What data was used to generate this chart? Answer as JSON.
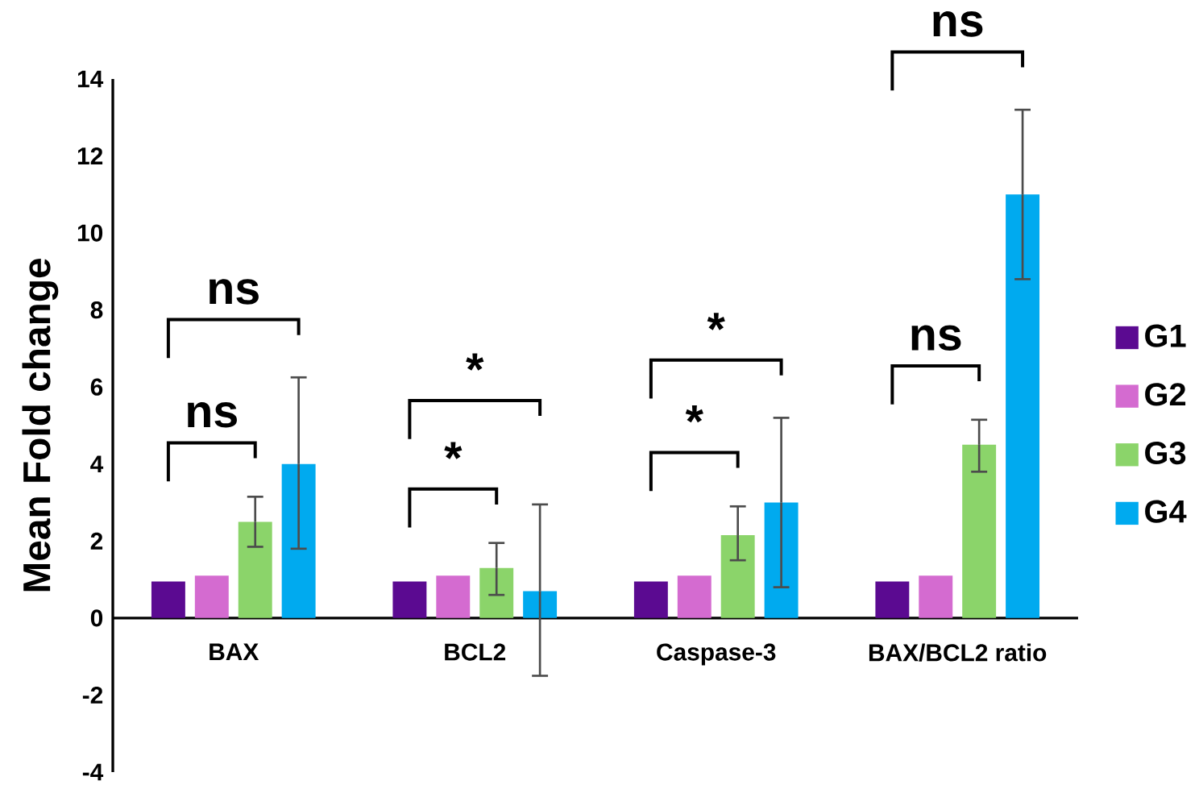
{
  "chart_data": {
    "type": "bar",
    "ylabel": "Mean Fold change",
    "categories": [
      "BAX",
      "BCL2",
      "Caspase-3",
      "BAX/BCL2 ratio"
    ],
    "series": [
      {
        "name": "G1",
        "color": "#5b0a91",
        "values": [
          0.95,
          0.95,
          0.95,
          0.95
        ]
      },
      {
        "name": "G2",
        "color": "#d46bd0",
        "values": [
          1.1,
          1.1,
          1.1,
          1.1
        ]
      },
      {
        "name": "G3",
        "color": "#8bd46a",
        "values": [
          2.5,
          1.3,
          2.15,
          4.5
        ],
        "errors": [
          [
            1.85,
            3.15
          ],
          [
            0.6,
            1.95
          ],
          [
            1.5,
            2.9
          ],
          [
            3.8,
            5.15
          ]
        ]
      },
      {
        "name": "G4",
        "color": "#00aaef",
        "values": [
          4.0,
          0.7,
          3.0,
          11.0
        ],
        "errors": [
          [
            1.8,
            6.25
          ],
          [
            -1.5,
            2.95
          ],
          [
            0.8,
            5.2
          ],
          [
            8.8,
            13.2
          ]
        ]
      }
    ],
    "ylim": [
      -4,
      14
    ],
    "yticks": [
      -4,
      -2,
      0,
      2,
      4,
      6,
      8,
      10,
      12,
      14
    ],
    "grid": false,
    "legend": "right",
    "annotations": [
      "ns",
      "ns",
      "*",
      "*",
      "*",
      "*",
      "ns",
      "ns"
    ]
  }
}
